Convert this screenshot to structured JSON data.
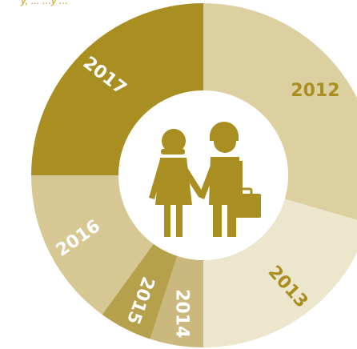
{
  "caption": "y, ... ...y ...",
  "chart_data": {
    "type": "pie",
    "style": "donut",
    "title": "",
    "categories": [
      "2012",
      "2013",
      "2014",
      "2015",
      "2016",
      "2017"
    ],
    "values": [
      29.5,
      20.5,
      5,
      5,
      15,
      25
    ],
    "colors": [
      "#dccfa0",
      "#ece6cc",
      "#cbb87e",
      "#b5a04c",
      "#d7c793",
      "#a98e22"
    ],
    "label_colors": [
      "#a98e22",
      "#a98e22",
      "#ffffff",
      "#ffffff",
      "#ffffff",
      "#ffffff"
    ],
    "center_icon": "couple-icon",
    "legend": "none"
  }
}
